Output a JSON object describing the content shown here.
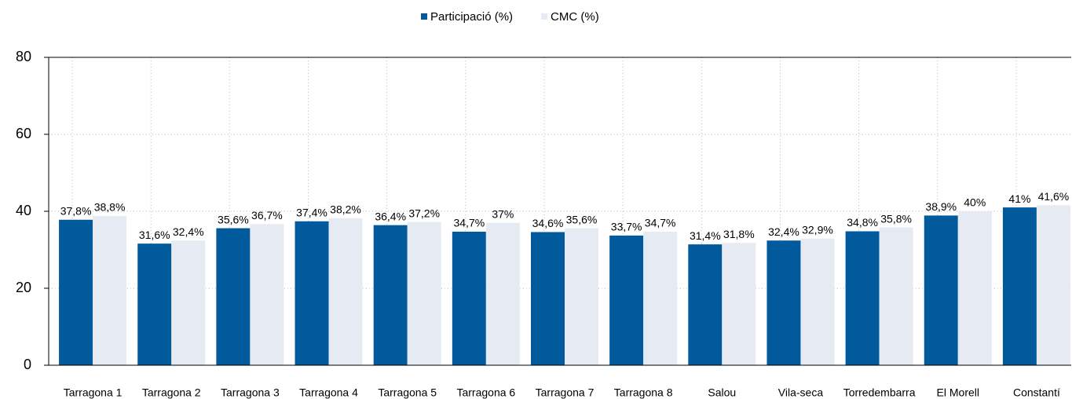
{
  "chart_data": {
    "type": "bar",
    "categories": [
      "Tarragona 1",
      "Tarragona 2",
      "Tarragona 3",
      "Tarragona 4",
      "Tarragona 5",
      "Tarragona 6",
      "Tarragona 7",
      "Tarragona 8",
      "Salou",
      "Vila-seca",
      "Torredembarra",
      "El Morell",
      "Constantí"
    ],
    "series": [
      {
        "name": "Participació (%)",
        "color": "#005a9c",
        "values": [
          37.8,
          31.6,
          35.6,
          37.4,
          36.4,
          34.7,
          34.6,
          33.7,
          31.4,
          32.4,
          34.8,
          38.9,
          41
        ],
        "value_labels": [
          "37,8%",
          "31,6%",
          "35,6%",
          "37,4%",
          "36,4%",
          "34,7%",
          "34,6%",
          "33,7%",
          "31,4%",
          "32,4%",
          "34,8%",
          "38,9%",
          "41%"
        ]
      },
      {
        "name": "CMC (%)",
        "color": "#e6ebf3",
        "values": [
          38.8,
          32.4,
          36.7,
          38.2,
          37.2,
          37,
          35.6,
          34.7,
          31.8,
          32.9,
          35.8,
          40,
          41.6
        ],
        "value_labels": [
          "38,8%",
          "32,4%",
          "36,7%",
          "38,2%",
          "37,2%",
          "37%",
          "35,6%",
          "34,7%",
          "31,8%",
          "32,9%",
          "35,8%",
          "40%",
          "41,6%"
        ]
      }
    ],
    "ylim": [
      0,
      80
    ],
    "yticks": [
      0,
      20,
      40,
      60,
      80
    ],
    "grid": true
  }
}
